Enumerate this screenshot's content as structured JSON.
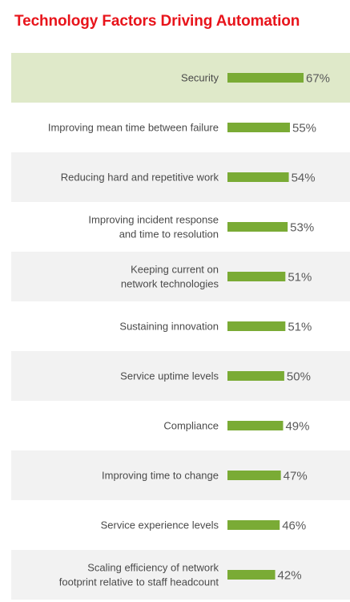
{
  "title": "Technology Factors Driving Automation",
  "colors": {
    "title": "#e8141b",
    "bar": "#7aab35",
    "row_shade": "#f2f2f2",
    "highlight_row": "#dfe9c9"
  },
  "chart_data": {
    "type": "bar",
    "orientation": "horizontal",
    "title": "Technology Factors Driving Automation",
    "value_unit": "%",
    "highlighted_category": "Security",
    "categories": [
      "Security",
      "Improving mean time between failure",
      "Reducing hard and repetitive work",
      "Improving incident response and time to resolution",
      "Keeping current on network technologies",
      "Sustaining innovation",
      "Service uptime levels",
      "Compliance",
      "Improving time to change",
      "Service experience levels",
      "Scaling efficiency of network footprint relative to staff headcount"
    ],
    "label_lines": [
      [
        "Security"
      ],
      [
        "Improving mean time between failure"
      ],
      [
        "Reducing hard and repetitive work"
      ],
      [
        "Improving incident response",
        "and time to resolution"
      ],
      [
        "Keeping current on",
        "network technologies"
      ],
      [
        "Sustaining innovation"
      ],
      [
        "Service uptime levels"
      ],
      [
        "Compliance"
      ],
      [
        "Improving time to change"
      ],
      [
        "Service experience levels"
      ],
      [
        "Scaling efficiency of network",
        "footprint relative to staff headcount"
      ]
    ],
    "values": [
      67,
      55,
      54,
      53,
      51,
      51,
      50,
      49,
      47,
      46,
      42
    ],
    "value_labels": [
      "67%",
      "55%",
      "54%",
      "53%",
      "51%",
      "51%",
      "50%",
      "49%",
      "47%",
      "46%",
      "42%"
    ]
  }
}
